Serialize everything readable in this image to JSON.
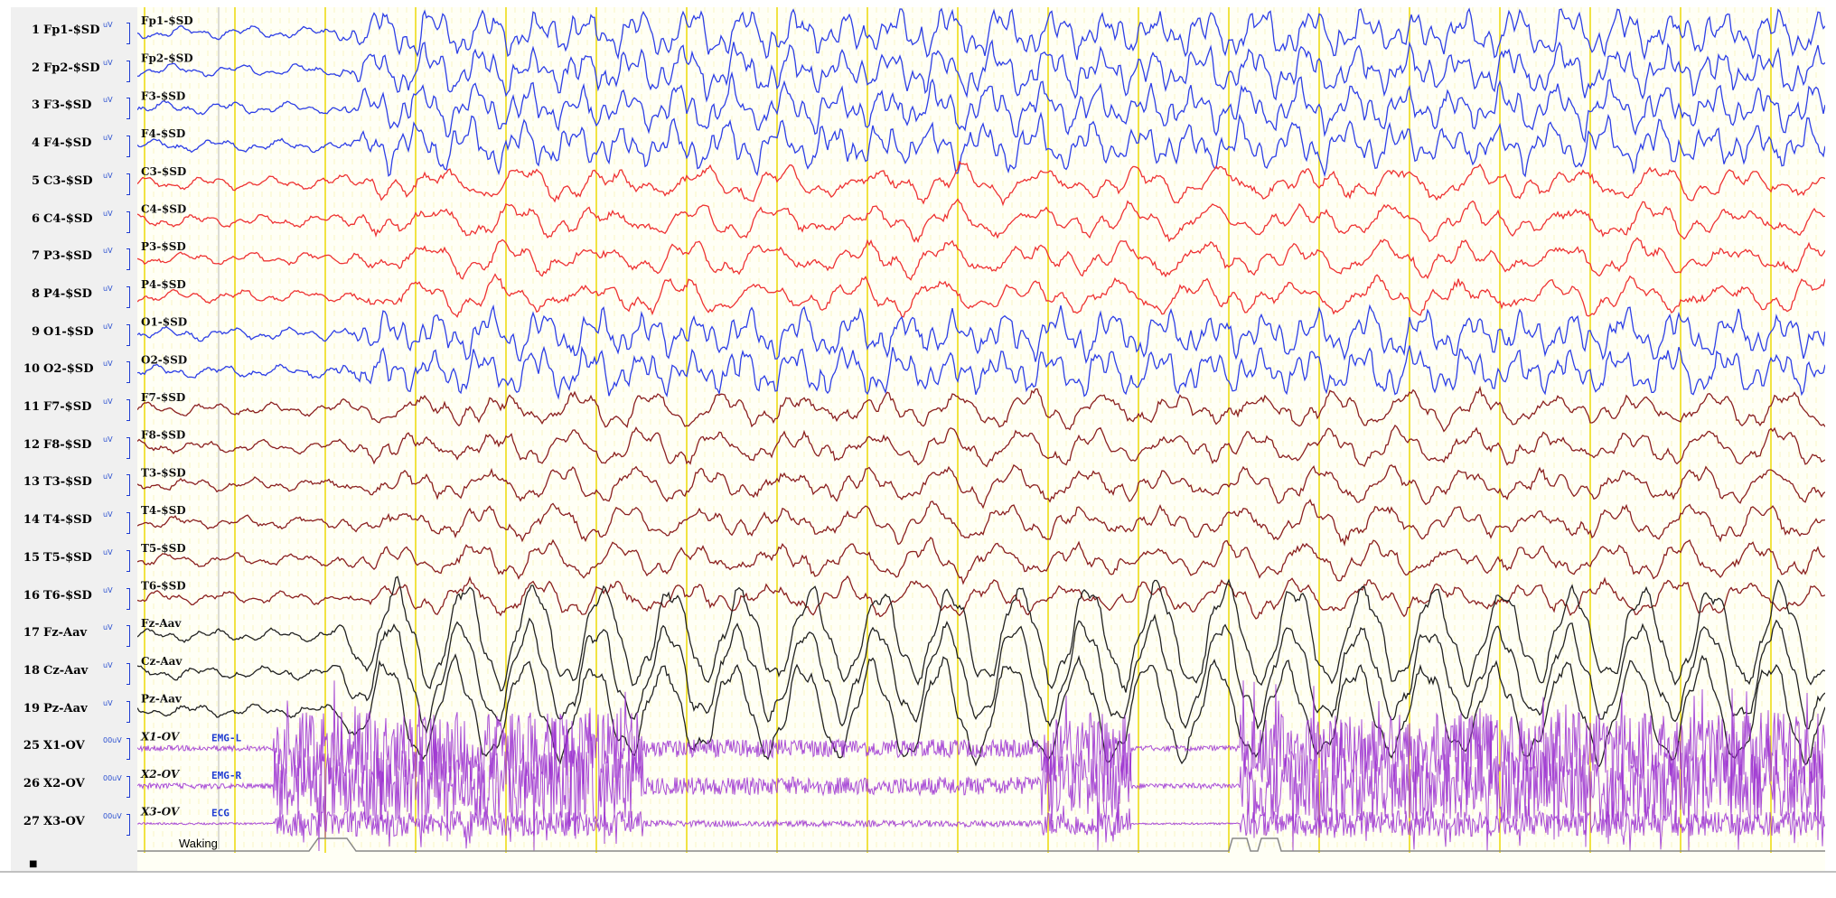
{
  "channels": [
    {
      "num": "1",
      "label": "Fp1-$SD",
      "sens": "uV",
      "trace_label": "Fp1-$SD",
      "color": "#2e3fe6"
    },
    {
      "num": "2",
      "label": "Fp2-$SD",
      "sens": "uV",
      "trace_label": "Fp2-$SD",
      "color": "#2e3fe6"
    },
    {
      "num": "3",
      "label": "F3-$SD",
      "sens": "uV",
      "trace_label": "F3-$SD",
      "color": "#2e3fe6"
    },
    {
      "num": "4",
      "label": "F4-$SD",
      "sens": "uV",
      "trace_label": "F4-$SD",
      "color": "#2e3fe6"
    },
    {
      "num": "5",
      "label": "C3-$SD",
      "sens": "uV",
      "trace_label": "C3-$SD",
      "color": "#ee3333"
    },
    {
      "num": "6",
      "label": "C4-$SD",
      "sens": "uV",
      "trace_label": "C4-$SD",
      "color": "#ee3333"
    },
    {
      "num": "7",
      "label": "P3-$SD",
      "sens": "uV",
      "trace_label": "P3-$SD",
      "color": "#ee3333"
    },
    {
      "num": "8",
      "label": "P4-$SD",
      "sens": "uV",
      "trace_label": "P4-$SD",
      "color": "#ee3333"
    },
    {
      "num": "9",
      "label": "O1-$SD",
      "sens": "uV",
      "trace_label": "O1-$SD",
      "color": "#2e3fe6"
    },
    {
      "num": "10",
      "label": "O2-$SD",
      "sens": "uV",
      "trace_label": "O2-$SD",
      "color": "#2e3fe6"
    },
    {
      "num": "11",
      "label": "F7-$SD",
      "sens": "uV",
      "trace_label": "F7-$SD",
      "color": "#8b2020"
    },
    {
      "num": "12",
      "label": "F8-$SD",
      "sens": "uV",
      "trace_label": "F8-$SD",
      "color": "#8b2020"
    },
    {
      "num": "13",
      "label": "T3-$SD",
      "sens": "uV",
      "trace_label": "T3-$SD",
      "color": "#8b2020"
    },
    {
      "num": "14",
      "label": "T4-$SD",
      "sens": "uV",
      "trace_label": "T4-$SD",
      "color": "#8b2020"
    },
    {
      "num": "15",
      "label": "T5-$SD",
      "sens": "uV",
      "trace_label": "T5-$SD",
      "color": "#8b2020"
    },
    {
      "num": "16",
      "label": "T6-$SD",
      "sens": "uV",
      "trace_label": "T6-$SD",
      "color": "#8b2020"
    },
    {
      "num": "17",
      "label": "Fz-Aav",
      "sens": "uV",
      "trace_label": "Fz-Aav",
      "color": "#222222"
    },
    {
      "num": "18",
      "label": "Cz-Aav",
      "sens": "uV",
      "trace_label": "Cz-Aav",
      "color": "#222222"
    },
    {
      "num": "19",
      "label": "Pz-Aav",
      "sens": "uV",
      "trace_label": "Pz-Aav",
      "color": "#222222"
    },
    {
      "num": "25",
      "label": "X1-OV",
      "sens": "00uV",
      "trace_label": "X1-OV",
      "color": "#9b30d0"
    },
    {
      "num": "26",
      "label": "X2-OV",
      "sens": "00uV",
      "trace_label": "X2-OV",
      "color": "#9b30d0"
    },
    {
      "num": "27",
      "label": "X3-OV",
      "sens": "00uV",
      "trace_label": "X3-OV",
      "color": "#9b30d0"
    }
  ],
  "aux_labels": [
    "EMG-L",
    "EMG-R",
    "ECG"
  ],
  "event_label": "Waking",
  "footer_marker": "■",
  "colors": {
    "background": "#fffff5",
    "grid_major": "#f0e030",
    "grid_minor": "#f3ef9a",
    "bracket": "#1f3cd2",
    "aux_label": "#1f3cd2",
    "event_marker": "#888888"
  }
}
